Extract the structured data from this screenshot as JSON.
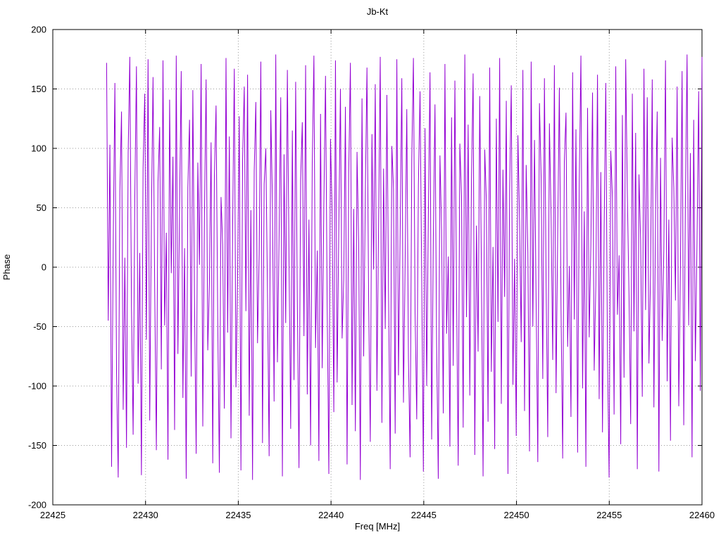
{
  "title": "Jb-Kt",
  "chart_data": {
    "type": "line",
    "title": "Jb-Kt",
    "xlabel": "Freq [MHz]",
    "ylabel": "Phase",
    "xlim": [
      22425,
      22460
    ],
    "ylim": [
      -200,
      200
    ],
    "x_ticks": [
      22425,
      22430,
      22435,
      22440,
      22445,
      22450,
      22455,
      22460
    ],
    "y_ticks": [
      -200,
      -150,
      -100,
      -50,
      0,
      50,
      100,
      150,
      200
    ],
    "grid": true,
    "grid_style": "dotted",
    "legend_position": "none",
    "line_color": "#9400d3",
    "grid_color": "#9a9a9a",
    "border_color": "#000000",
    "series": [
      {
        "name": "Jb-Kt phase",
        "x_start": 22427.9,
        "x_end": 22460.0,
        "values": [
          172,
          -45,
          103,
          -168,
          22,
          155,
          -89,
          -177,
          64,
          131,
          -120,
          8,
          -152,
          96,
          177,
          -33,
          -141,
          57,
          169,
          -98,
          12,
          -175,
          84,
          146,
          -61,
          175,
          -129,
          38,
          160,
          -17,
          -154,
          72,
          118,
          -86,
          174,
          -49,
          29,
          -162,
          141,
          -5,
          93,
          -137,
          178,
          -73,
          51,
          165,
          -110,
          16,
          -178,
          67,
          124,
          -92,
          149,
          -26,
          -157,
          88,
          2,
          171,
          -134,
          43,
          158,
          -70,
          -13,
          105,
          -165,
          77,
          136,
          -41,
          -173,
          59,
          19,
          -119,
          176,
          -55,
          110,
          -144,
          34,
          167,
          -101,
          -7,
          127,
          -171,
          90,
          152,
          -37,
          162,
          -125,
          48,
          -179,
          81,
          139,
          -64,
          11,
          173,
          -148,
          70,
          100,
          -21,
          -159,
          132,
          54,
          -113,
          179,
          -80,
          25,
          143,
          -176,
          95,
          -47,
          166,
          6,
          -136,
          115,
          -95,
          156,
          -29,
          -169,
          74,
          122,
          -58,
          170,
          -107,
          40,
          -150,
          87,
          178,
          -68,
          14,
          -163,
          129,
          -85,
          53,
          161,
          -32,
          -174,
          108,
          45,
          -122,
          174,
          -97,
          30,
          150,
          -60,
          -10,
          135,
          -166,
          79,
          172,
          -116,
          49,
          -138,
          97,
          20,
          -179,
          142,
          -75,
          62,
          168,
          -27,
          -147,
          112,
          -2,
          154,
          -104,
          36,
          177,
          -131,
          83,
          -52,
          145,
          -18,
          -170,
          102,
          66,
          -140,
          175,
          -91,
          28,
          159,
          -114,
          4,
          133,
          -77,
          -160,
          91,
          176,
          -38,
          -128,
          69,
          148,
          -9,
          -172,
          117,
          -100,
          42,
          164,
          -145,
          24,
          137,
          -66,
          -178,
          94,
          31,
          -123,
          171,
          -56,
          9,
          -151,
          126,
          -83,
          157,
          -19,
          -167,
          104,
          60,
          -135,
          179,
          -42,
          120,
          -108,
          73,
          163,
          -158,
          35,
          -71,
          144,
          -3,
          -176,
          99,
          55,
          -130,
          168,
          -88,
          17,
          -153,
          125,
          -46,
          176,
          -115,
          82,
          -25,
          140,
          -174,
          65,
          153,
          -99,
          7,
          -142,
          111,
          39,
          -63,
          166,
          -121,
          86,
          13,
          -155,
          173,
          -50,
          107,
          -30,
          -164,
          138,
          76,
          -94,
          159,
          -12,
          -143,
          121,
          44,
          -78,
          170,
          -106,
          26,
          151,
          -34,
          -161,
          89,
          130,
          -67,
          1,
          -126,
          164,
          -44,
          116,
          -156,
          71,
          178,
          -102,
          47,
          -168,
          134,
          -59,
          18,
          147,
          -87,
          -15,
          162,
          -111,
          80,
          -139,
          33,
          155,
          -74,
          -177,
          98,
          58,
          -124,
          169,
          -40,
          10,
          -149,
          128,
          -93,
          175,
          61,
          -23,
          -132,
          146,
          -54,
          113,
          -170,
          78,
          23,
          -109,
          167,
          -36,
          143,
          -81,
          -6,
          158,
          -118,
          50,
          131,
          -172,
          92,
          -62,
          15,
          174,
          -96,
          40,
          -146,
          109,
          67,
          -28,
          152,
          -117,
          0,
          165,
          -133,
          56,
          179,
          -49,
          96,
          -160,
          124,
          -79,
          21,
          148,
          -104,
          177
        ]
      }
    ]
  }
}
